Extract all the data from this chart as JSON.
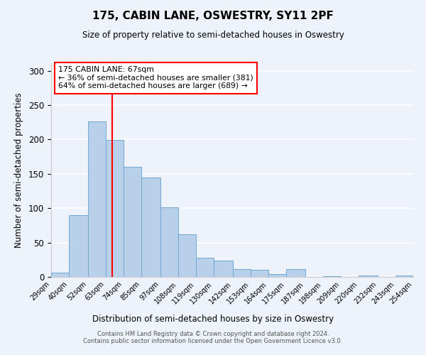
{
  "title": "175, CABIN LANE, OSWESTRY, SY11 2PF",
  "subtitle": "Size of property relative to semi-detached houses in Oswestry",
  "xlabel": "Distribution of semi-detached houses by size in Oswestry",
  "ylabel": "Number of semi-detached properties",
  "bin_labels": [
    "29sqm",
    "40sqm",
    "52sqm",
    "63sqm",
    "74sqm",
    "85sqm",
    "97sqm",
    "108sqm",
    "119sqm",
    "130sqm",
    "142sqm",
    "153sqm",
    "164sqm",
    "175sqm",
    "187sqm",
    "198sqm",
    "209sqm",
    "220sqm",
    "232sqm",
    "243sqm",
    "254sqm"
  ],
  "bar_heights": [
    6,
    90,
    226,
    199,
    160,
    145,
    101,
    62,
    28,
    24,
    11,
    10,
    4,
    11,
    0,
    1,
    0,
    2,
    0,
    2
  ],
  "bar_color": "#b8d0ea",
  "bar_edge_color": "#6fa8d0",
  "ylim": [
    0,
    310
  ],
  "yticks": [
    0,
    50,
    100,
    150,
    200,
    250,
    300
  ],
  "vline_x": 67,
  "vline_color": "red",
  "annotation_title": "175 CABIN LANE: 67sqm",
  "annotation_line1": "← 36% of semi-detached houses are smaller (381)",
  "annotation_line2": "64% of semi-detached houses are larger (689) →",
  "annotation_box_color": "white",
  "annotation_box_edge_color": "red",
  "footer_line1": "Contains HM Land Registry data © Crown copyright and database right 2024.",
  "footer_line2": "Contains public sector information licensed under the Open Government Licence v3.0.",
  "bin_edges": [
    29,
    40,
    52,
    63,
    74,
    85,
    97,
    108,
    119,
    130,
    142,
    153,
    164,
    175,
    187,
    198,
    209,
    220,
    232,
    243,
    254
  ],
  "background_color": "#eef2fa"
}
